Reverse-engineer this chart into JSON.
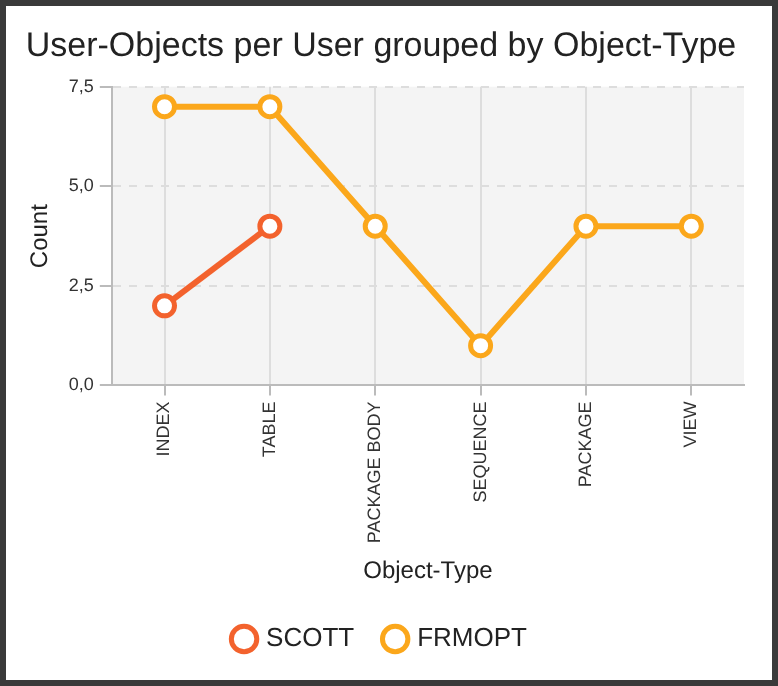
{
  "chart_data": {
    "type": "line",
    "title": "User-Objects per User grouped by Object-Type",
    "xlabel": "Object-Type",
    "ylabel": "Count",
    "categories": [
      "INDEX",
      "TABLE",
      "PACKAGE BODY",
      "SEQUENCE",
      "PACKAGE",
      "VIEW"
    ],
    "series": [
      {
        "name": "SCOTT",
        "color": "#f3622d",
        "values": [
          2,
          4,
          null,
          null,
          null,
          null
        ]
      },
      {
        "name": "FRMOPT",
        "color": "#fba71b",
        "values": [
          7,
          7,
          4,
          1,
          4,
          4
        ]
      }
    ],
    "ylim": [
      0,
      7.5
    ],
    "yticks": [
      {
        "value": 0,
        "label": "0,0"
      },
      {
        "value": 2.5,
        "label": "2,5"
      },
      {
        "value": 5,
        "label": "5,0"
      },
      {
        "value": 7.5,
        "label": "7,5"
      }
    ],
    "grid": true,
    "legend": "bottom",
    "marker": "circle",
    "line_style": "solid"
  }
}
